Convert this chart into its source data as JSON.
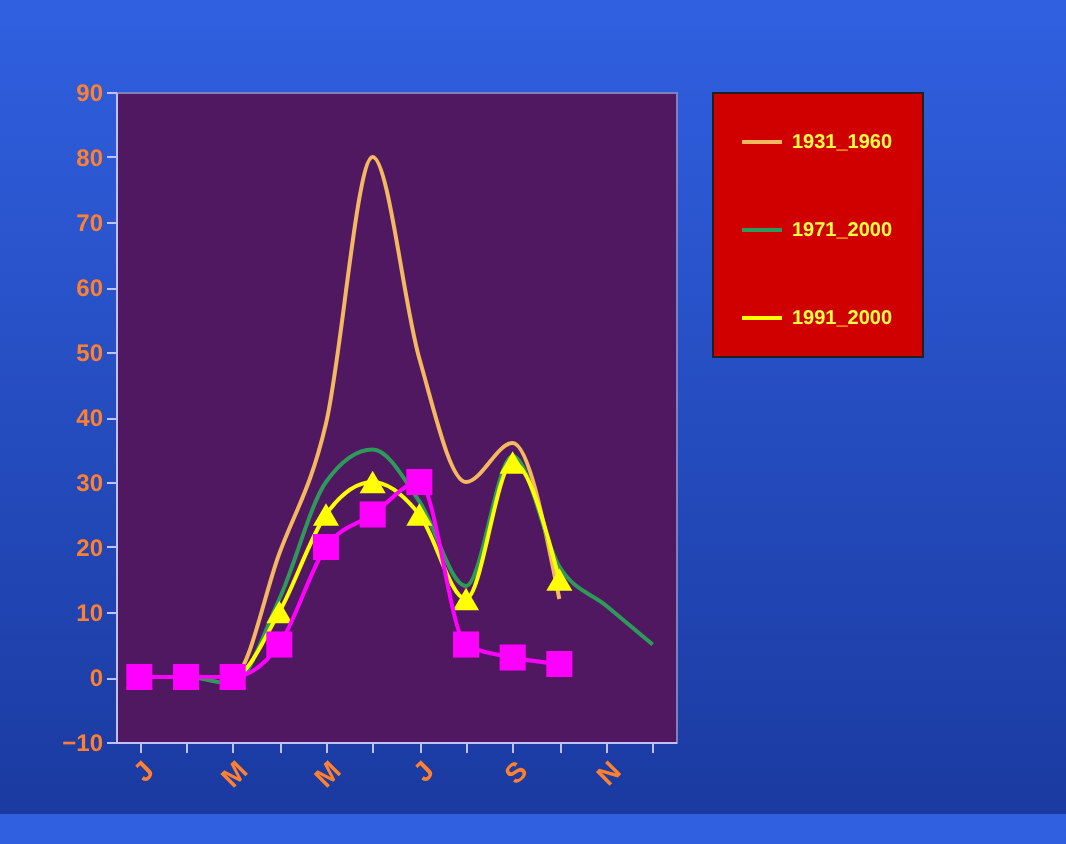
{
  "chart_data": {
    "type": "line",
    "categories": [
      "J",
      null,
      "M",
      null,
      "M",
      null,
      "J",
      null,
      "S",
      null,
      "N",
      null
    ],
    "series": [
      {
        "name": "1931_1960",
        "color": "#f4b860",
        "marker": "none",
        "values": [
          0,
          0,
          0,
          19,
          39,
          80,
          49,
          30,
          36,
          12,
          null,
          null
        ]
      },
      {
        "name": "1971_2000",
        "color": "#2e9a5a",
        "marker": "none",
        "values": [
          0,
          0,
          -1,
          12,
          30,
          35,
          27,
          14,
          34,
          17,
          11,
          5
        ]
      },
      {
        "name": "1991_2000",
        "color": "#ffff00",
        "marker": "triangle",
        "values": [
          0,
          0,
          0,
          10,
          25,
          30,
          25,
          12,
          33,
          15,
          null,
          null
        ]
      },
      {
        "color": "#ff00ff",
        "marker": "square",
        "values": [
          0,
          0,
          0,
          5,
          20,
          25,
          30,
          5,
          3,
          2,
          null,
          null
        ]
      }
    ],
    "ylim": [
      -10,
      90
    ],
    "yticks": [
      -10,
      0,
      10,
      20,
      30,
      40,
      50,
      60,
      70,
      80,
      90
    ],
    "grid": false,
    "legend": "right",
    "line_style": "solid"
  }
}
